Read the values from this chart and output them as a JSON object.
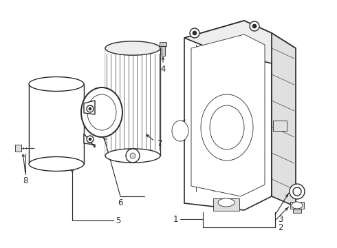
{
  "background_color": "#ffffff",
  "line_color": "#2a2a2a",
  "lw": 1.0,
  "lw_thin": 0.6,
  "lw_thick": 1.2,
  "fontsize": 8.5,
  "fig_w": 4.9,
  "fig_h": 3.6,
  "dpi": 100
}
